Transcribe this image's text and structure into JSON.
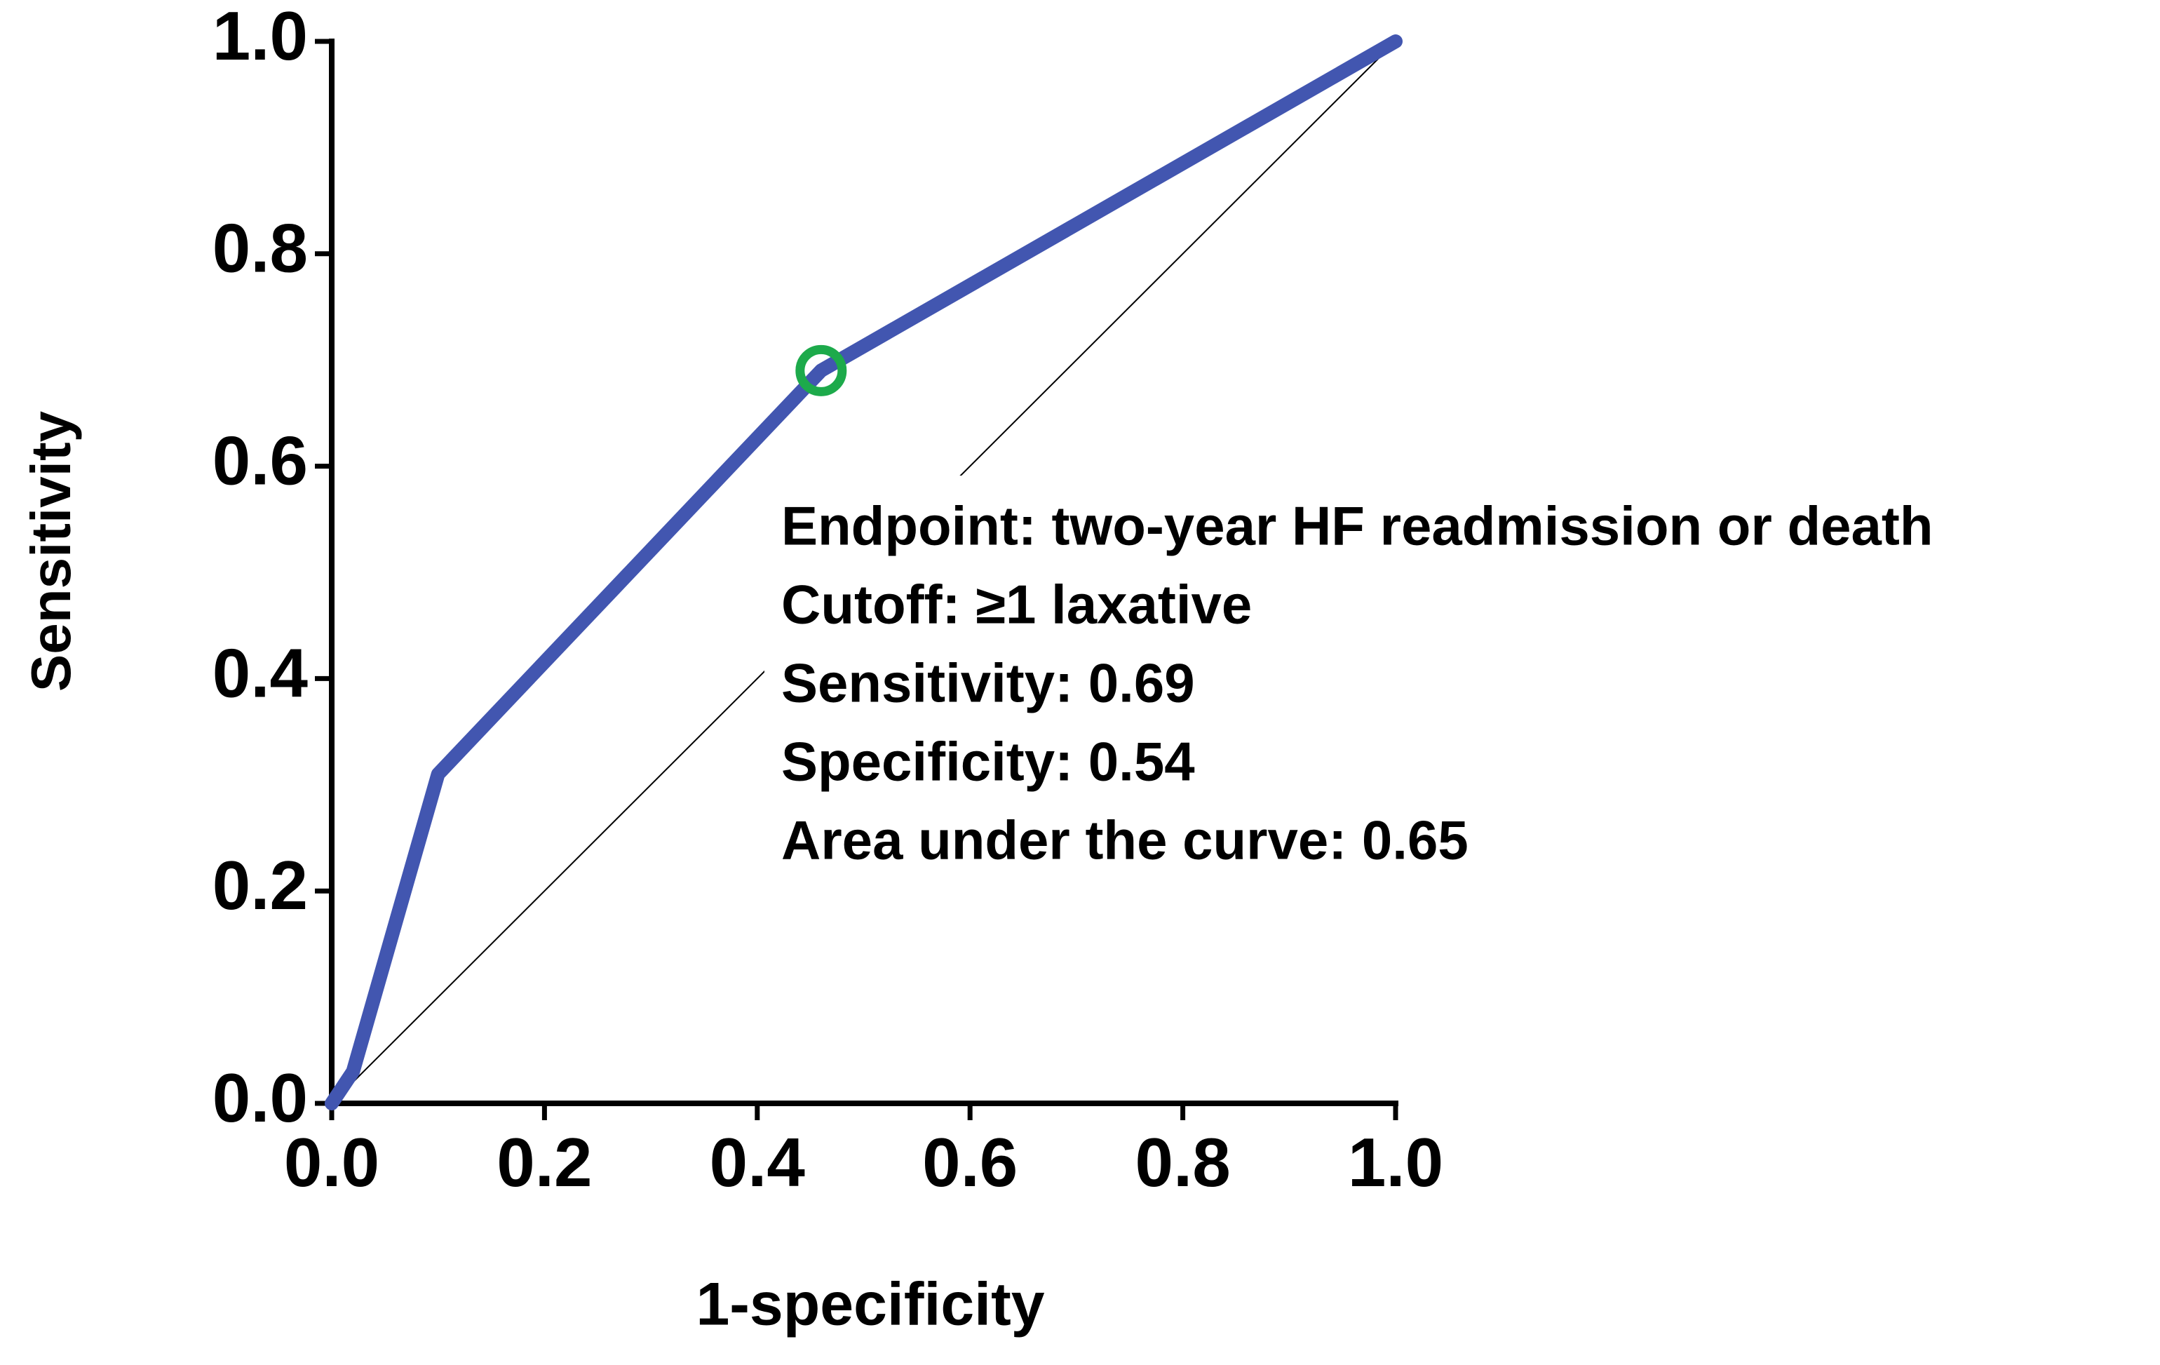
{
  "chart_data": {
    "type": "line",
    "xlabel": "1-specificity",
    "ylabel": "Sensitivity",
    "x": [
      0,
      0.02,
      0.1,
      0.46,
      1
    ],
    "series": [
      {
        "color": "#4256b0",
        "values": [
          0,
          0.03,
          0.31,
          0.69,
          1
        ]
      }
    ],
    "reference_line": {
      "x": [
        0,
        1
      ],
      "values": [
        0,
        1
      ],
      "color": "#000000"
    },
    "highlight": {
      "x": 0.46,
      "y": 0.69,
      "color": "#1daa4b"
    },
    "annotations": [
      "Endpoint: two-year HF readmission or death",
      "Cutoff: ≥1 laxative",
      "Sensitivity: 0.69",
      "Specificity: 0.54",
      "Area under the curve: 0.65"
    ],
    "xlim": [
      0,
      1
    ],
    "ylim": [
      0,
      1
    ],
    "xticks": [
      {
        "value": 0,
        "label": "0.0"
      },
      {
        "value": 0.2,
        "label": "0.2"
      },
      {
        "value": 0.4,
        "label": "0.4"
      },
      {
        "value": 0.6,
        "label": "0.6"
      },
      {
        "value": 0.8,
        "label": "0.8"
      },
      {
        "value": 1,
        "label": "1.0"
      }
    ],
    "yticks": [
      {
        "value": 0,
        "label": "0.0"
      },
      {
        "value": 0.2,
        "label": "0.2"
      },
      {
        "value": 0.4,
        "label": "0.4"
      },
      {
        "value": 0.6,
        "label": "0.6"
      },
      {
        "value": 0.8,
        "label": "0.8"
      },
      {
        "value": 1,
        "label": "1.0"
      }
    ],
    "grid": false
  }
}
